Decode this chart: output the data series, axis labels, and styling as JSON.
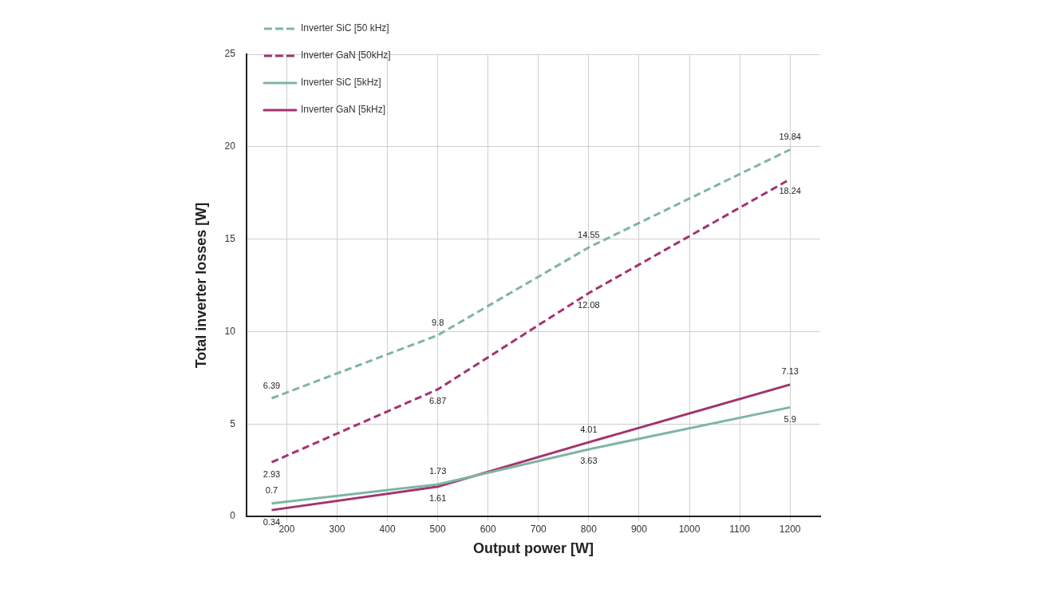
{
  "chart_data": {
    "type": "line",
    "xlabel": "Output power [W]",
    "ylabel": "Total inverter losses [W]",
    "x": [
      170,
      500,
      800,
      1200
    ],
    "series": [
      {
        "name": "Inverter SiC [50 kHz]",
        "color": "#7fb5a3",
        "line_style": "dashed",
        "values": [
          6.39,
          9.8,
          14.55,
          19.84
        ]
      },
      {
        "name": "Inverter GaN [50kHz]",
        "color": "#a3336f",
        "line_style": "dashed",
        "values": [
          2.93,
          6.87,
          12.08,
          18.24
        ]
      },
      {
        "name": "Inverter SiC [5kHz]",
        "color": "#7fb5a3",
        "line_style": "solid",
        "values": [
          0.7,
          1.73,
          3.63,
          5.9
        ]
      },
      {
        "name": "Inverter GaN [5kHz]",
        "color": "#a3336f",
        "line_style": "solid",
        "values": [
          0.34,
          1.61,
          4.01,
          7.13
        ]
      }
    ],
    "xlim": [
      120,
      1260
    ],
    "xticks": [
      200,
      300,
      400,
      500,
      600,
      700,
      800,
      900,
      1000,
      1100,
      1200
    ],
    "ylim": [
      0,
      25
    ],
    "yticks": [
      0,
      5,
      10,
      15,
      20,
      25
    ],
    "grid": true,
    "legend": "top left",
    "marker": "none",
    "data_labels": true
  }
}
